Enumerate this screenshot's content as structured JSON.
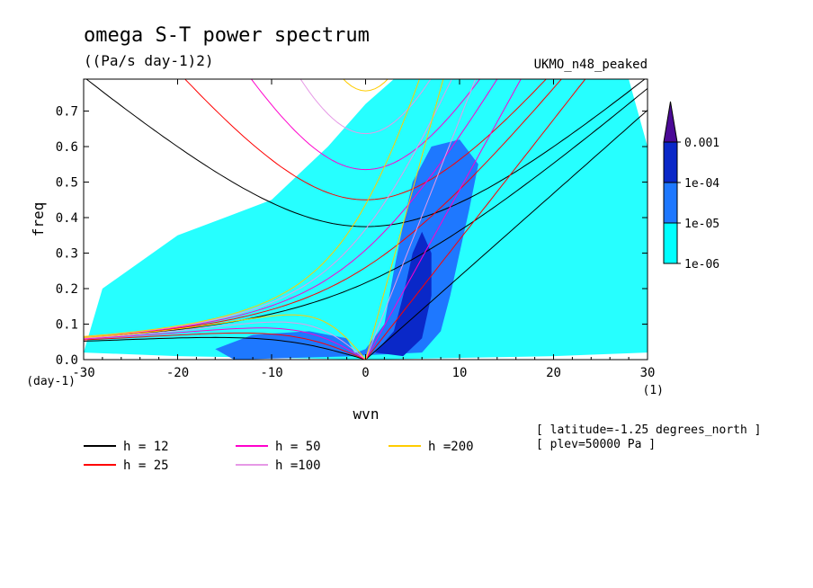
{
  "chart_data": {
    "type": "line",
    "title": "omega S-T power spectrum",
    "units": "((Pa/s day-1)2)",
    "dataset": "UKMO_n48_peaked",
    "xlabel": "wvn",
    "ylabel": "freq",
    "x_unit": "(1)",
    "y_unit": "(day-1)",
    "xlim": [
      -30,
      30
    ],
    "ylim": [
      0,
      0.79
    ],
    "xticks": [
      "-30",
      "-20",
      "-10",
      "0",
      "10",
      "20",
      "30"
    ],
    "xtick_values": [
      -30,
      -20,
      -10,
      0,
      10,
      20,
      30
    ],
    "yticks": [
      "0.0",
      "0.1",
      "0.2",
      "0.3",
      "0.4",
      "0.5",
      "0.6",
      "0.7"
    ],
    "ytick_values": [
      0,
      0.1,
      0.2,
      0.3,
      0.4,
      0.5,
      0.6,
      0.7
    ],
    "colorbar": {
      "labels": [
        "0.001",
        "1e-04",
        "1e-05",
        "1e-06"
      ],
      "levels": [
        1e-06,
        1e-05,
        0.0001,
        0.001
      ],
      "colors": [
        "#00ffff",
        "#1e78ff",
        "#0a28c8",
        "#4b0a96"
      ]
    },
    "shading_regions": [
      {
        "level": 1,
        "note": "broad background",
        "points": [
          [
            -30,
            0.02
          ],
          [
            -28,
            0.2
          ],
          [
            -20,
            0.35
          ],
          [
            -10,
            0.45
          ],
          [
            -4,
            0.6
          ],
          [
            0,
            0.72
          ],
          [
            3,
            0.79
          ],
          [
            28,
            0.79
          ],
          [
            30,
            0.6
          ],
          [
            30,
            0.02
          ],
          [
            20,
            0.01
          ],
          [
            0,
            0.0
          ],
          [
            -20,
            0.01
          ]
        ]
      },
      {
        "level": 2,
        "note": "eastward ridge",
        "points": [
          [
            -2,
            0.01
          ],
          [
            0,
            0.03
          ],
          [
            2,
            0.1
          ],
          [
            3,
            0.25
          ],
          [
            4,
            0.38
          ],
          [
            5,
            0.5
          ],
          [
            7,
            0.6
          ],
          [
            10,
            0.62
          ],
          [
            12,
            0.55
          ],
          [
            11,
            0.42
          ],
          [
            10,
            0.3
          ],
          [
            9,
            0.18
          ],
          [
            8,
            0.08
          ],
          [
            6,
            0.02
          ]
        ]
      },
      {
        "level": 2,
        "note": "low-frequency westward patch",
        "points": [
          [
            -16,
            0.03
          ],
          [
            -12,
            0.07
          ],
          [
            -6,
            0.08
          ],
          [
            -2,
            0.06
          ],
          [
            -1,
            0.01
          ],
          [
            -14,
            0.0
          ]
        ]
      },
      {
        "level": 3,
        "note": "ridge core",
        "points": [
          [
            1,
            0.02
          ],
          [
            3,
            0.08
          ],
          [
            4,
            0.18
          ],
          [
            5,
            0.3
          ],
          [
            6,
            0.36
          ],
          [
            7,
            0.3
          ],
          [
            7,
            0.18
          ],
          [
            6,
            0.06
          ],
          [
            4,
            0.01
          ]
        ]
      }
    ],
    "series": [
      {
        "name": "h = 12",
        "h": 12,
        "color": "#000000"
      },
      {
        "name": "h = 25",
        "h": 25,
        "color": "#ff0000"
      },
      {
        "name": "h = 50",
        "h": 50,
        "color": "#ff00cc"
      },
      {
        "name": "h =100",
        "h": 100,
        "color": "#e699e6"
      },
      {
        "name": "h =200",
        "h": 200,
        "color": "#ffcc00"
      }
    ],
    "info": [
      "[ latitude=-1.25 degrees_north ]",
      "[ plev=50000 Pa ]"
    ],
    "grid": false,
    "legend_position": "bottom-left"
  }
}
